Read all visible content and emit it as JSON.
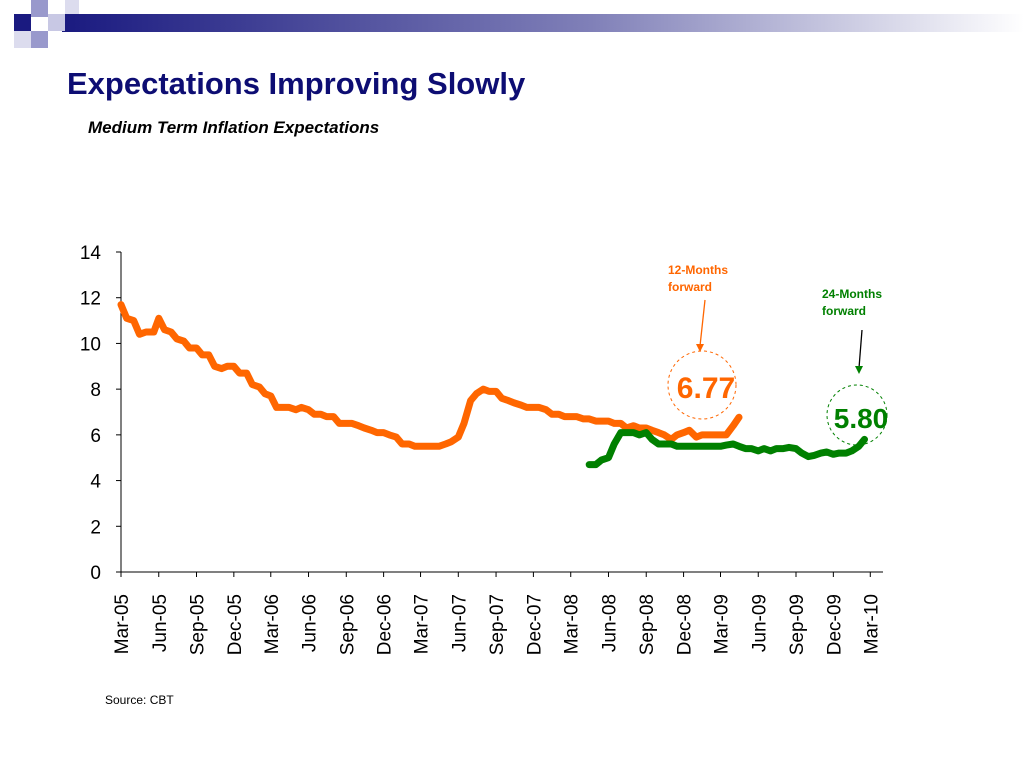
{
  "slide": {
    "title": "Expectations Improving Slowly",
    "subtitle": "Medium Term Inflation Expectations",
    "source": "Source: CBT",
    "colors": {
      "title": "#0d0d73",
      "decor": "#1a1a80",
      "decor_light": "#9999cc"
    }
  },
  "chart_data": {
    "type": "line",
    "title": "Medium Term Inflation Expectations",
    "xlabel": "",
    "ylabel": "",
    "ylim": [
      0,
      14
    ],
    "yticks": [
      0,
      2,
      4,
      6,
      8,
      10,
      12,
      14
    ],
    "x_start": "2005-03",
    "x_end": "2010-04",
    "xticks": [
      "Mar-05",
      "Jun-05",
      "Sep-05",
      "Dec-05",
      "Mar-06",
      "Jun-06",
      "Sep-06",
      "Dec-06",
      "Mar-07",
      "Jun-07",
      "Sep-07",
      "Dec-07",
      "Mar-08",
      "Jun-08",
      "Sep-08",
      "Dec-08",
      "Mar-09",
      "Jun-09",
      "Sep-09",
      "Dec-09",
      "Mar-10"
    ],
    "grid": false,
    "series": [
      {
        "name": "12-Months forward",
        "color": "#ff6600",
        "points": [
          [
            "2005-03-01",
            11.7
          ],
          [
            "2005-03-15",
            11.1
          ],
          [
            "2005-04-01",
            11.0
          ],
          [
            "2005-04-15",
            10.4
          ],
          [
            "2005-05-01",
            10.5
          ],
          [
            "2005-05-20",
            10.5
          ],
          [
            "2005-06-01",
            11.1
          ],
          [
            "2005-06-15",
            10.6
          ],
          [
            "2005-07-01",
            10.5
          ],
          [
            "2005-07-15",
            10.2
          ],
          [
            "2005-08-01",
            10.1
          ],
          [
            "2005-08-15",
            9.8
          ],
          [
            "2005-09-01",
            9.8
          ],
          [
            "2005-09-15",
            9.5
          ],
          [
            "2005-10-01",
            9.5
          ],
          [
            "2005-10-15",
            9.0
          ],
          [
            "2005-11-01",
            8.9
          ],
          [
            "2005-11-15",
            9.0
          ],
          [
            "2005-12-01",
            9.0
          ],
          [
            "2005-12-15",
            8.7
          ],
          [
            "2006-01-01",
            8.7
          ],
          [
            "2006-01-15",
            8.2
          ],
          [
            "2006-02-01",
            8.1
          ],
          [
            "2006-02-15",
            7.8
          ],
          [
            "2006-03-01",
            7.7
          ],
          [
            "2006-03-15",
            7.2
          ],
          [
            "2006-04-01",
            7.2
          ],
          [
            "2006-04-15",
            7.2
          ],
          [
            "2006-05-01",
            7.1
          ],
          [
            "2006-05-15",
            7.2
          ],
          [
            "2006-06-01",
            7.1
          ],
          [
            "2006-06-15",
            6.9
          ],
          [
            "2006-07-01",
            6.9
          ],
          [
            "2006-07-15",
            6.8
          ],
          [
            "2006-08-01",
            6.8
          ],
          [
            "2006-08-15",
            6.5
          ],
          [
            "2006-09-01",
            6.5
          ],
          [
            "2006-09-15",
            6.5
          ],
          [
            "2006-10-01",
            6.4
          ],
          [
            "2006-10-15",
            6.3
          ],
          [
            "2006-11-01",
            6.2
          ],
          [
            "2006-11-15",
            6.1
          ],
          [
            "2006-12-01",
            6.1
          ],
          [
            "2006-12-15",
            6.0
          ],
          [
            "2007-01-01",
            5.9
          ],
          [
            "2007-01-15",
            5.6
          ],
          [
            "2007-02-01",
            5.6
          ],
          [
            "2007-02-15",
            5.5
          ],
          [
            "2007-03-01",
            5.5
          ],
          [
            "2007-03-15",
            5.5
          ],
          [
            "2007-04-01",
            5.5
          ],
          [
            "2007-04-15",
            5.5
          ],
          [
            "2007-05-01",
            5.6
          ],
          [
            "2007-05-15",
            5.7
          ],
          [
            "2007-06-01",
            5.9
          ],
          [
            "2007-06-15",
            6.5
          ],
          [
            "2007-07-01",
            7.5
          ],
          [
            "2007-07-15",
            7.8
          ],
          [
            "2007-08-01",
            8.0
          ],
          [
            "2007-08-15",
            7.9
          ],
          [
            "2007-09-01",
            7.9
          ],
          [
            "2007-09-15",
            7.6
          ],
          [
            "2007-10-01",
            7.5
          ],
          [
            "2007-10-15",
            7.4
          ],
          [
            "2007-11-01",
            7.3
          ],
          [
            "2007-11-15",
            7.2
          ],
          [
            "2007-12-01",
            7.2
          ],
          [
            "2007-12-15",
            7.2
          ],
          [
            "2008-01-01",
            7.1
          ],
          [
            "2008-01-15",
            6.9
          ],
          [
            "2008-02-01",
            6.9
          ],
          [
            "2008-02-15",
            6.8
          ],
          [
            "2008-03-01",
            6.8
          ],
          [
            "2008-03-15",
            6.8
          ],
          [
            "2008-04-01",
            6.7
          ],
          [
            "2008-04-15",
            6.7
          ],
          [
            "2008-05-01",
            6.6
          ],
          [
            "2008-05-15",
            6.6
          ],
          [
            "2008-06-01",
            6.6
          ],
          [
            "2008-06-15",
            6.5
          ],
          [
            "2008-07-01",
            6.5
          ],
          [
            "2008-07-15",
            6.3
          ],
          [
            "2008-08-01",
            6.4
          ],
          [
            "2008-08-15",
            6.3
          ],
          [
            "2008-09-01",
            6.3
          ],
          [
            "2008-09-15",
            6.2
          ],
          [
            "2008-10-01",
            6.1
          ],
          [
            "2008-10-15",
            6.0
          ],
          [
            "2008-11-01",
            5.8
          ],
          [
            "2008-11-15",
            6.0
          ],
          [
            "2008-12-01",
            6.1
          ],
          [
            "2008-12-15",
            6.2
          ],
          [
            "2009-01-01",
            5.9
          ],
          [
            "2009-01-15",
            6.0
          ],
          [
            "2009-02-01",
            6.0
          ],
          [
            "2009-02-15",
            6.0
          ],
          [
            "2009-03-01",
            6.0
          ],
          [
            "2009-03-15",
            6.0
          ],
          [
            "2009-04-01",
            6.4
          ],
          [
            "2009-04-15",
            6.77
          ]
        ]
      },
      {
        "name": "24-Months forward",
        "color": "#008000",
        "points": [
          [
            "2008-04-15",
            4.7
          ],
          [
            "2008-05-01",
            4.7
          ],
          [
            "2008-05-15",
            4.9
          ],
          [
            "2008-06-01",
            5.0
          ],
          [
            "2008-06-15",
            5.6
          ],
          [
            "2008-07-01",
            6.1
          ],
          [
            "2008-07-15",
            6.1
          ],
          [
            "2008-08-01",
            6.1
          ],
          [
            "2008-08-15",
            6.0
          ],
          [
            "2008-09-01",
            6.1
          ],
          [
            "2008-09-15",
            5.8
          ],
          [
            "2008-10-01",
            5.6
          ],
          [
            "2008-10-15",
            5.6
          ],
          [
            "2008-11-01",
            5.6
          ],
          [
            "2008-11-15",
            5.5
          ],
          [
            "2008-12-01",
            5.5
          ],
          [
            "2008-12-15",
            5.5
          ],
          [
            "2009-01-01",
            5.5
          ],
          [
            "2009-01-15",
            5.5
          ],
          [
            "2009-02-01",
            5.5
          ],
          [
            "2009-02-15",
            5.5
          ],
          [
            "2009-03-01",
            5.5
          ],
          [
            "2009-03-15",
            5.55
          ],
          [
            "2009-04-01",
            5.6
          ],
          [
            "2009-04-15",
            5.5
          ],
          [
            "2009-05-01",
            5.4
          ],
          [
            "2009-05-15",
            5.4
          ],
          [
            "2009-06-01",
            5.3
          ],
          [
            "2009-06-15",
            5.4
          ],
          [
            "2009-07-01",
            5.3
          ],
          [
            "2009-07-15",
            5.4
          ],
          [
            "2009-08-01",
            5.4
          ],
          [
            "2009-08-15",
            5.45
          ],
          [
            "2009-09-01",
            5.4
          ],
          [
            "2009-09-15",
            5.2
          ],
          [
            "2009-10-01",
            5.05
          ],
          [
            "2009-10-15",
            5.1
          ],
          [
            "2009-11-01",
            5.2
          ],
          [
            "2009-11-15",
            5.25
          ],
          [
            "2009-12-01",
            5.15
          ],
          [
            "2009-12-15",
            5.2
          ],
          [
            "2010-01-01",
            5.2
          ],
          [
            "2010-01-15",
            5.3
          ],
          [
            "2010-02-01",
            5.5
          ],
          [
            "2010-02-15",
            5.8
          ]
        ]
      }
    ],
    "annotations": [
      {
        "label": "12-Months\nforward",
        "value": "6.77",
        "color": "#ff6600",
        "series": "12-Months forward"
      },
      {
        "label": "24-Months\nforward",
        "value": "5.80",
        "color": "#008000",
        "series": "24-Months forward"
      }
    ]
  }
}
